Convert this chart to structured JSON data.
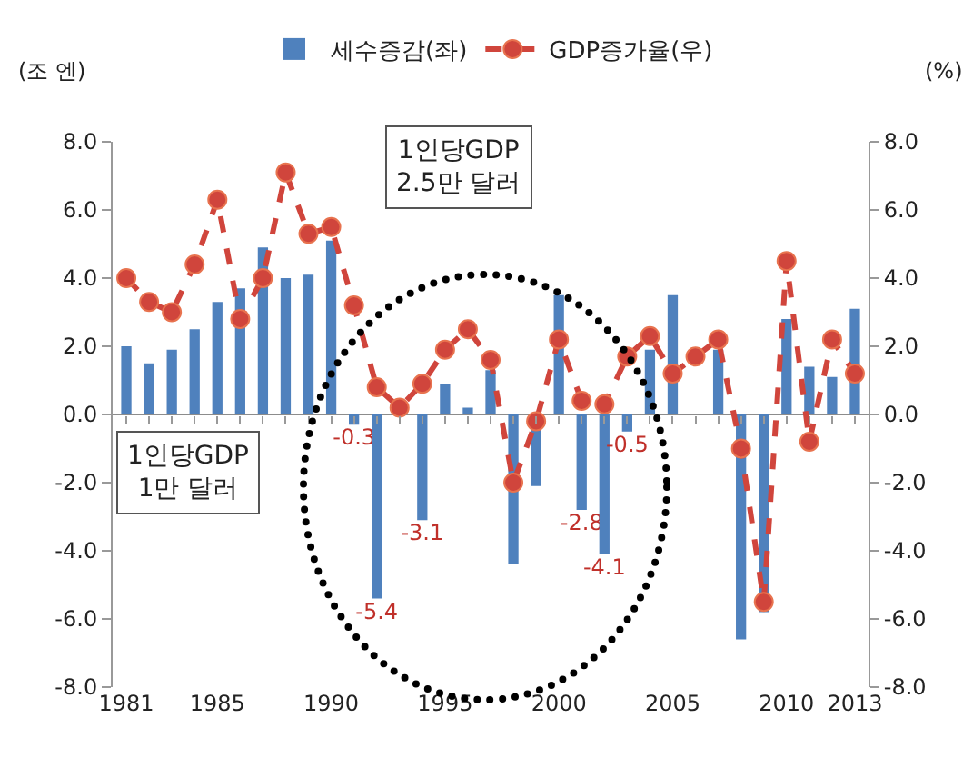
{
  "chart_data": {
    "type": "bar",
    "ylabel": "(조 엔)",
    "y2label": "(%)",
    "x": [
      1981,
      1982,
      1983,
      1984,
      1985,
      1986,
      1987,
      1988,
      1989,
      1990,
      1991,
      1992,
      1993,
      1994,
      1995,
      1996,
      1997,
      1998,
      1999,
      2000,
      2001,
      2002,
      2003,
      2004,
      2005,
      2006,
      2007,
      2008,
      2009,
      2010,
      2011,
      2012,
      2013
    ],
    "series": [
      {
        "name": "세수증감(좌)",
        "color": "#4f81bd",
        "values": [
          2.0,
          1.5,
          1.9,
          2.5,
          3.3,
          3.7,
          4.9,
          4.0,
          4.1,
          5.1,
          -0.3,
          -5.4,
          null,
          -3.1,
          0.9,
          0.2,
          1.3,
          -4.4,
          -2.1,
          3.5,
          -2.8,
          -4.1,
          -0.5,
          1.9,
          3.5,
          null,
          1.9,
          -6.6,
          -5.8,
          2.8,
          1.4,
          1.1,
          3.1
        ],
        "value_labels": [
          null,
          null,
          null,
          null,
          null,
          null,
          null,
          null,
          null,
          null,
          "-0.3",
          "-5.4",
          null,
          "-3.1",
          null,
          null,
          null,
          null,
          null,
          null,
          "-2.8",
          "-4.1",
          "-0.5",
          null,
          null,
          null,
          null,
          null,
          null,
          null,
          null,
          null,
          null
        ]
      },
      {
        "name": "GDP증가율(우)",
        "type": "line",
        "axis": "y2",
        "color": "#d0453c",
        "marker": "circle",
        "line_style": "dashed",
        "values": [
          4.0,
          3.3,
          3.0,
          4.4,
          6.3,
          2.8,
          4.0,
          7.1,
          5.3,
          5.5,
          3.2,
          0.8,
          0.2,
          0.9,
          1.9,
          2.5,
          1.6,
          -2.0,
          -0.2,
          2.2,
          0.4,
          0.3,
          1.7,
          2.3,
          1.2,
          1.7,
          2.2,
          -1.0,
          -5.5,
          4.5,
          -0.8,
          2.2,
          1.2
        ]
      }
    ],
    "xlim": [
      1980.4,
      2013.6
    ],
    "xticks": [
      1981,
      1985,
      1990,
      1995,
      2000,
      2005,
      2010,
      2013
    ],
    "ylim": [
      -8,
      8
    ],
    "yticks": [
      {
        "value": -8,
        "label": "-8.0"
      },
      {
        "value": -6,
        "label": "-6.0"
      },
      {
        "value": -4,
        "label": "-4.0"
      },
      {
        "value": -2,
        "label": "-2.0"
      },
      {
        "value": 0,
        "label": "0.0"
      },
      {
        "value": 2,
        "label": "2.0"
      },
      {
        "value": 4,
        "label": "4.0"
      },
      {
        "value": 6,
        "label": "6.0"
      },
      {
        "value": 8,
        "label": "8.0"
      }
    ],
    "y2lim": [
      -8,
      8
    ],
    "y2ticks": [
      {
        "value": -8,
        "label": "-8.0"
      },
      {
        "value": -6,
        "label": "-6.0"
      },
      {
        "value": -4,
        "label": "-4.0"
      },
      {
        "value": -2,
        "label": "-2.0"
      },
      {
        "value": 0,
        "label": "0.0"
      },
      {
        "value": 2,
        "label": "2.0"
      },
      {
        "value": 4,
        "label": "4.0"
      },
      {
        "value": 6,
        "label": "6.0"
      },
      {
        "value": 8,
        "label": "8.0"
      }
    ],
    "annotations": [
      "1인당GDP\n2.5만 달러",
      "1인당GDP\n1만 달러"
    ],
    "ref_lines": [
      {
        "axis": "y",
        "value": 0,
        "color": "#8c8c8c",
        "line_style": "solid"
      }
    ],
    "legend": "top",
    "grid": false
  }
}
